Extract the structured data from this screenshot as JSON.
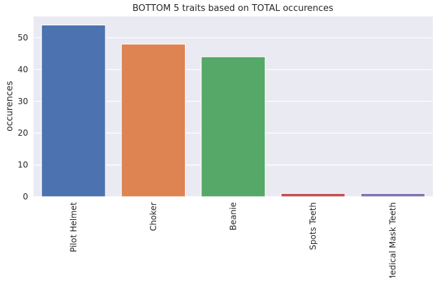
{
  "chart_data": {
    "type": "bar",
    "title": "BOTTOM 5 traits based on TOTAL occurences",
    "xlabel": "",
    "ylabel": "occurences",
    "categories": [
      "Pilot Helmet",
      "Choker",
      "Beanie",
      "Spots Teeth",
      "Medical Mask Teeth"
    ],
    "values": [
      54,
      48,
      44,
      1,
      1
    ],
    "colors": [
      "#4c72b0",
      "#dd8452",
      "#55a868",
      "#c44e52",
      "#8172b3"
    ],
    "ylim": [
      0,
      56.7
    ],
    "yticks": [
      0,
      10,
      20,
      30,
      40,
      50
    ],
    "grid": true,
    "background": "#eaeaf2"
  }
}
